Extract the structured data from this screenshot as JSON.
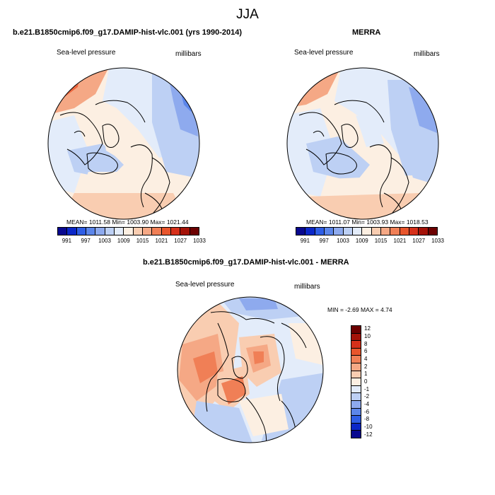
{
  "title": "JJA",
  "panels": {
    "model": {
      "title": "b.e21.B1850cmip6.f09_g17.DAMIP-hist-vlc.001 (yrs 1990-2014)",
      "left_label": "Sea-level pressure",
      "right_label": "millibars",
      "stats": "MEAN= 1011.58  Min= 1003.90  Max= 1021.44"
    },
    "obs": {
      "title": "MERRA",
      "left_label": "Sea-level pressure",
      "right_label": "millibars",
      "stats": "MEAN= 1011.07  Min= 1003.93  Max= 1018.53"
    },
    "diff": {
      "title": "b.e21.B1850cmip6.f09_g17.DAMIP-hist-vlc.001 - MERRA",
      "left_label": "Sea-level pressure",
      "right_label": "millibars",
      "stats": "MIN =  -2.69 MAX =   4.74"
    }
  },
  "colorbar_abs": {
    "ticks": [
      "991",
      "997",
      "1003",
      "1009",
      "1015",
      "1021",
      "1027",
      "1033"
    ],
    "colors": [
      "#08088f",
      "#0b27c8",
      "#2f5ee6",
      "#5c86ea",
      "#8eaaee",
      "#bdd0f4",
      "#e3ecfa",
      "#fcefe2",
      "#f9cdb1",
      "#f5a885",
      "#f07f56",
      "#e8552c",
      "#d6301a",
      "#a41208",
      "#6c0000"
    ]
  },
  "colorbar_diff": {
    "ticks": [
      "12",
      "10",
      "8",
      "6",
      "4",
      "2",
      "1",
      "0",
      "-1",
      "-2",
      "-4",
      "-6",
      "-8",
      "-10",
      "-12"
    ],
    "colors": [
      "#6c0000",
      "#a41208",
      "#d6301a",
      "#e8552c",
      "#f07f56",
      "#f5a885",
      "#f9cdb1",
      "#fcefe2",
      "#e3ecfa",
      "#bdd0f4",
      "#8eaaee",
      "#5c86ea",
      "#2f5ee6",
      "#0b27c8",
      "#08088f"
    ]
  }
}
